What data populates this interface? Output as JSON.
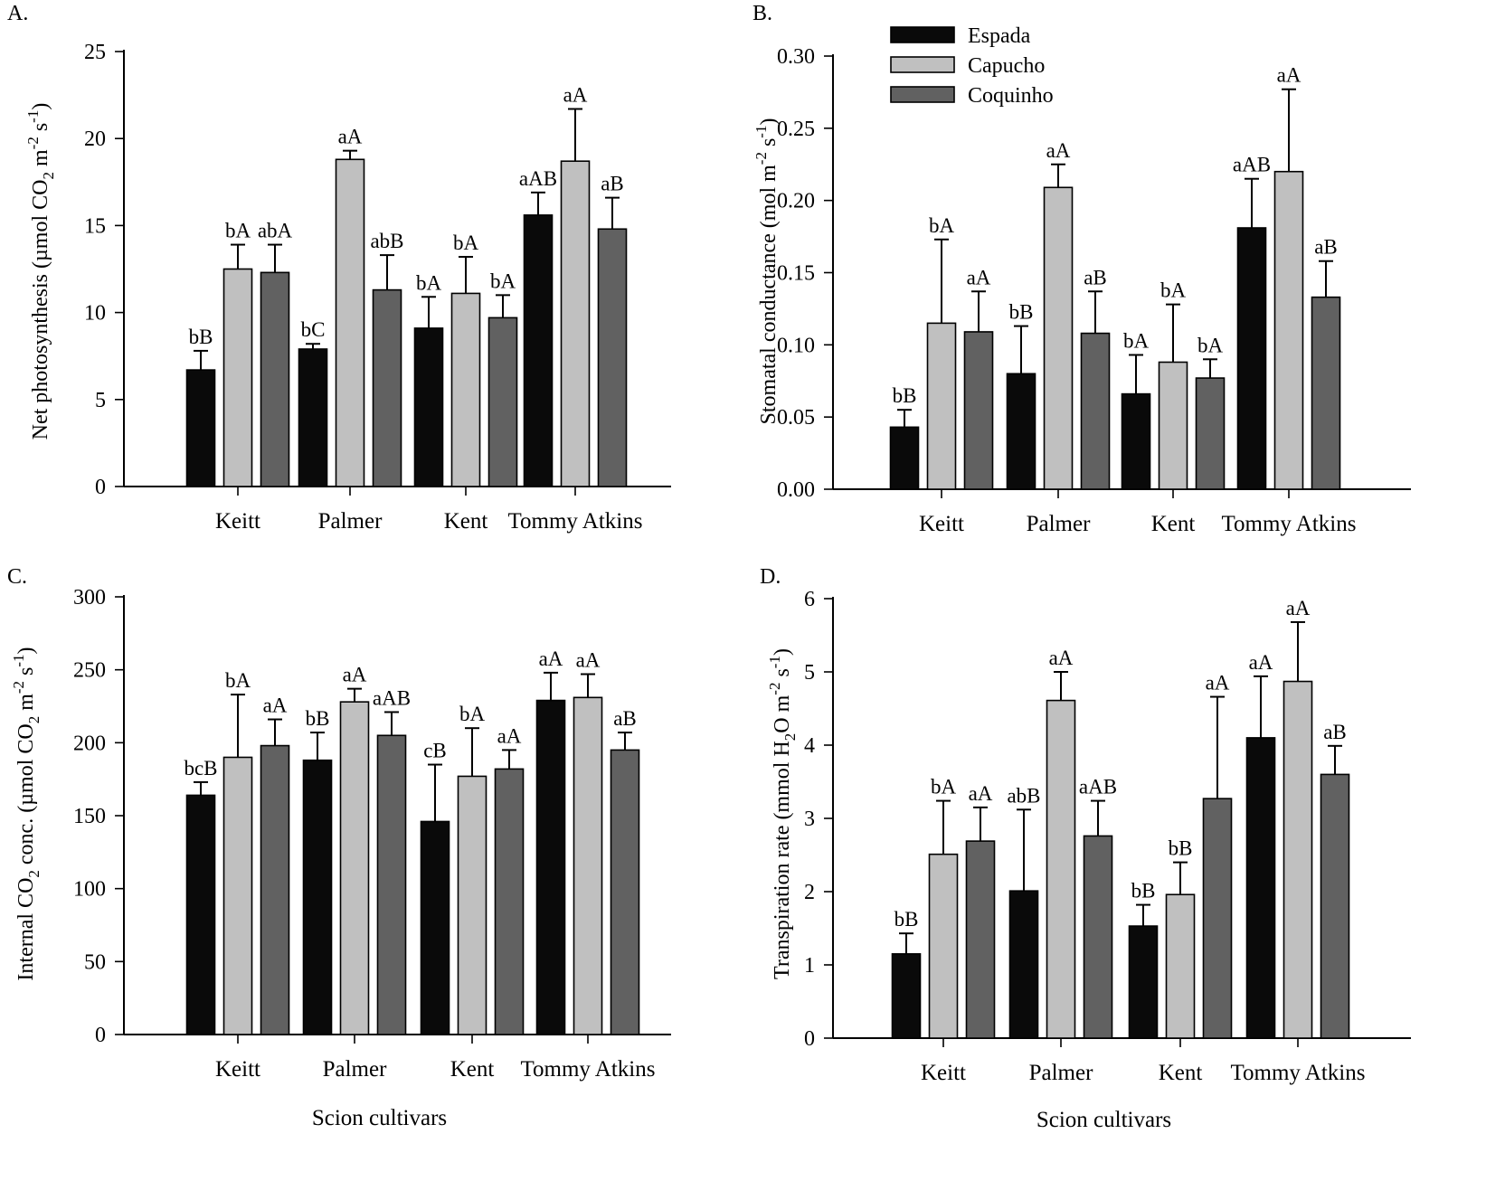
{
  "figure": {
    "legend": [
      {
        "name": "Espada",
        "color": "#0a0a0a"
      },
      {
        "name": "Capucho",
        "color": "#c0c0c0"
      },
      {
        "name": "Coquinho",
        "color": "#616161"
      }
    ],
    "x_title": "Scion cultivars"
  },
  "chart_data": [
    {
      "panel": "A.",
      "type": "bar",
      "title": "",
      "ylabel": "Net photosynthesis (µmol CO2 m-2 s-1)",
      "ylabel_parts": {
        "main": "Net photosynthesis (µmol CO",
        "sub": "2",
        "mid": " m",
        "sup1": "-2",
        "mid2": " s",
        "sup2": "-1",
        "end": ")"
      },
      "xlabel": "",
      "categories": [
        "Keitt",
        "Palmer",
        "Kent",
        "Tommy Atkins"
      ],
      "ylim": [
        0,
        25
      ],
      "yticks": [
        0,
        5,
        10,
        15,
        20,
        25
      ],
      "ytick_labels": [
        "0",
        "5",
        "10",
        "15",
        "20",
        "25"
      ],
      "series": [
        {
          "name": "Espada",
          "values": [
            6.7,
            7.9,
            9.1,
            15.6
          ],
          "error_upper": [
            7.8,
            8.2,
            10.9,
            16.9
          ],
          "labels": [
            "bB",
            "bC",
            "bA",
            "aAB"
          ]
        },
        {
          "name": "Capucho",
          "values": [
            12.5,
            18.8,
            11.1,
            18.7
          ],
          "error_upper": [
            13.9,
            19.3,
            13.2,
            21.7
          ],
          "labels": [
            "bA",
            "aA",
            "bA",
            "aA"
          ]
        },
        {
          "name": "Coquinho",
          "values": [
            12.3,
            11.3,
            9.7,
            14.8
          ],
          "error_upper": [
            13.9,
            13.3,
            11.0,
            16.6
          ],
          "labels": [
            "abA",
            "abB",
            "bA",
            "aB"
          ]
        }
      ],
      "legend": "none",
      "grid": false
    },
    {
      "panel": "B.",
      "type": "bar",
      "title": "",
      "ylabel": "Stomatal conductance (mol m-2 s-1)",
      "ylabel_parts": {
        "main": "Stomatal conductance (mol",
        "sub": "",
        "mid": " m",
        "sup1": "-2",
        "mid2": " s",
        "sup2": "-1",
        "end": ")"
      },
      "xlabel": "",
      "categories": [
        "Keitt",
        "Palmer",
        "Kent",
        "Tommy Atkins"
      ],
      "ylim": [
        0,
        0.3
      ],
      "yticks": [
        0,
        0.05,
        0.1,
        0.15,
        0.2,
        0.25,
        0.3
      ],
      "ytick_labels": [
        "0.00",
        "0.05",
        "0.10",
        "0.15",
        "0.20",
        "0.25",
        "0.30"
      ],
      "series": [
        {
          "name": "Espada",
          "values": [
            0.043,
            0.08,
            0.066,
            0.181
          ],
          "error_upper": [
            0.055,
            0.113,
            0.093,
            0.215
          ],
          "labels": [
            "bB",
            "bB",
            "bA",
            "aAB"
          ]
        },
        {
          "name": "Capucho",
          "values": [
            0.115,
            0.209,
            0.088,
            0.22
          ],
          "error_upper": [
            0.173,
            0.225,
            0.128,
            0.277
          ],
          "labels": [
            "bA",
            "aA",
            "bA",
            "aA"
          ]
        },
        {
          "name": "Coquinho",
          "values": [
            0.109,
            0.108,
            0.077,
            0.133
          ],
          "error_upper": [
            0.137,
            0.137,
            0.09,
            0.158
          ],
          "labels": [
            "aA",
            "aB",
            "bA",
            "aB"
          ]
        }
      ],
      "legend": "top-left",
      "grid": false
    },
    {
      "panel": "C.",
      "type": "bar",
      "title": "",
      "ylabel": "Internal CO2 conc. (µmol CO2 m-2 s-1)",
      "ylabel_parts": {
        "main": "Internal CO",
        "sub": "2",
        "main2": " conc. (µmol CO",
        "sub2": "2",
        "mid": " m",
        "sup1": "-2",
        "mid2": " s",
        "sup2": "-1",
        "end": ")"
      },
      "xlabel": "Scion cultivars",
      "categories": [
        "Keitt",
        "Palmer",
        "Kent",
        "Tommy Atkins"
      ],
      "ylim": [
        0,
        300
      ],
      "yticks": [
        0,
        50,
        100,
        150,
        200,
        250,
        300
      ],
      "ytick_labels": [
        "0",
        "50",
        "100",
        "150",
        "200",
        "250",
        "300"
      ],
      "series": [
        {
          "name": "Espada",
          "values": [
            164,
            188,
            146,
            229
          ],
          "error_upper": [
            173,
            207,
            185,
            248
          ],
          "labels": [
            "bcB",
            "bB",
            "cB",
            "aA"
          ]
        },
        {
          "name": "Capucho",
          "values": [
            190,
            228,
            177,
            231
          ],
          "error_upper": [
            233,
            237,
            210,
            247
          ],
          "labels": [
            "bA",
            "aA",
            "bA",
            "aA"
          ]
        },
        {
          "name": "Coquinho",
          "values": [
            198,
            205,
            182,
            195
          ],
          "error_upper": [
            216,
            221,
            195,
            207
          ],
          "labels": [
            "aA",
            "aAB",
            "aA",
            "aB"
          ]
        }
      ],
      "legend": "none",
      "grid": false
    },
    {
      "panel": "D.",
      "type": "bar",
      "title": "",
      "ylabel": "Transpiration rate (mmol H2O m-2 s-1)",
      "ylabel_parts": {
        "main": "Transpiration rate (mmol H",
        "sub": "2",
        "main2": "O m",
        "sup1": "-2",
        "mid2": " s",
        "sup2": "-1",
        "end": ")"
      },
      "xlabel": "Scion cultivars",
      "categories": [
        "Keitt",
        "Palmer",
        "Kent",
        "Tommy Atkins"
      ],
      "ylim": [
        0,
        6
      ],
      "yticks": [
        0,
        1,
        2,
        3,
        4,
        5,
        6
      ],
      "ytick_labels": [
        "0",
        "1",
        "2",
        "3",
        "4",
        "5",
        "6"
      ],
      "series": [
        {
          "name": "Espada",
          "values": [
            1.15,
            2.01,
            1.53,
            4.1
          ],
          "error_upper": [
            1.43,
            3.12,
            1.82,
            4.94
          ],
          "labels": [
            "bB",
            "abB",
            "bB",
            "aA"
          ]
        },
        {
          "name": "Capucho",
          "values": [
            2.51,
            4.61,
            1.96,
            4.87
          ],
          "error_upper": [
            3.24,
            5.0,
            2.4,
            5.68
          ],
          "labels": [
            "bA",
            "aA",
            "bB",
            "aA"
          ]
        },
        {
          "name": "Coquinho",
          "values": [
            2.69,
            2.76,
            3.27,
            3.6
          ],
          "error_upper": [
            3.15,
            3.24,
            4.66,
            3.99
          ],
          "labels": [
            "aA",
            "aAB",
            "aA",
            "aB"
          ]
        }
      ],
      "legend": "none",
      "grid": false
    }
  ]
}
